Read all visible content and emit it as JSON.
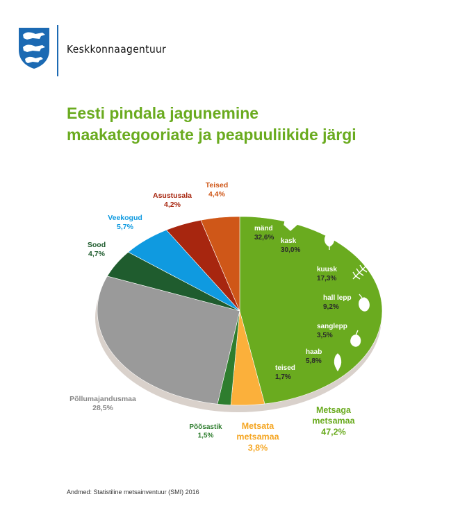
{
  "header": {
    "agency": "Keskkonnaagentuur"
  },
  "title_line1": "Eesti pindala jagunemine",
  "title_line2": "maakategooriate ja peapuuliikide järgi",
  "source": "Andmed: Statistiline metsainventuur (SMI) 2016",
  "colors": {
    "forest": "#6aab1f",
    "unforested": "#fbb03b",
    "shrub": "#2e7d2e",
    "agri": "#9a9a9a",
    "bog": "#1f5c2e",
    "water": "#0f9ae0",
    "settlement": "#a7260f",
    "other": "#cf5718"
  },
  "chart_data": {
    "type": "pie",
    "title": "Eesti pindala jagunemine maakategooriate ja peapuuliikide järgi",
    "unit": "%",
    "slices": [
      {
        "name": "Metsaga metsamaa",
        "value": 47.2,
        "label": "47,2%",
        "color": "#6aab1f",
        "text_color": "#6aab1f"
      },
      {
        "name": "Metsata metsamaa",
        "value": 3.8,
        "label": "3,8%",
        "color": "#fbb03b",
        "text_color": "#f5a623"
      },
      {
        "name": "Põõsastik",
        "value": 1.5,
        "label": "1,5%",
        "color": "#2e7d2e",
        "text_color": "#2e7d2e"
      },
      {
        "name": "Põllumajandusmaa",
        "value": 28.5,
        "label": "28,5%",
        "color": "#9a9a9a",
        "text_color": "#888888"
      },
      {
        "name": "Sood",
        "value": 4.7,
        "label": "4,7%",
        "color": "#1f5c2e",
        "text_color": "#1f5c2e"
      },
      {
        "name": "Veekogud",
        "value": 5.7,
        "label": "5,7%",
        "color": "#0f9ae0",
        "text_color": "#0f9ae0"
      },
      {
        "name": "Asustusala",
        "value": 4.2,
        "label": "4,2%",
        "color": "#a7260f",
        "text_color": "#a7260f"
      },
      {
        "name": "Teised",
        "value": 4.4,
        "label": "4,4%",
        "color": "#cf5718",
        "text_color": "#cf5718"
      }
    ],
    "forest_breakdown": [
      {
        "name": "mänd",
        "value": 32.6,
        "label": "32,6%",
        "icon": "pine-cone-icon"
      },
      {
        "name": "kask",
        "value": 30.0,
        "label": "30,0%",
        "icon": "birch-leaf-icon"
      },
      {
        "name": "kuusk",
        "value": 17.3,
        "label": "17,3%",
        "icon": "spruce-branch-icon"
      },
      {
        "name": "hall lepp",
        "value": 9.2,
        "label": "9,2%",
        "icon": "grey-alder-leaf-icon"
      },
      {
        "name": "sanglepp",
        "value": 3.5,
        "label": "3,5%",
        "icon": "black-alder-leaf-icon"
      },
      {
        "name": "haab",
        "value": 5.8,
        "label": "5,8%",
        "icon": "aspen-leaf-icon"
      },
      {
        "name": "teised",
        "value": 1.7,
        "label": "1,7%",
        "icon": ""
      }
    ]
  }
}
